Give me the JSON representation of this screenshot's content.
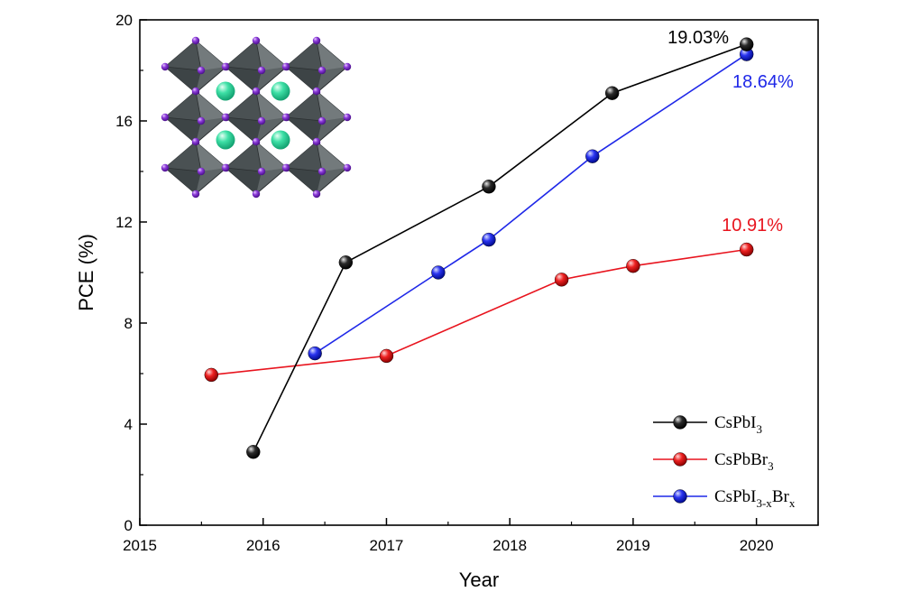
{
  "chart_data": {
    "type": "line",
    "title": "",
    "xlabel": "Year",
    "ylabel": "PCE (%)",
    "xlim": [
      2015,
      2020.5
    ],
    "ylim": [
      0,
      20
    ],
    "xticks": [
      "2015",
      "2016",
      "2017",
      "2018",
      "2019",
      "2020"
    ],
    "yticks": [
      "0",
      "4",
      "8",
      "12",
      "16",
      "20"
    ],
    "grid": false,
    "legend_position": "bottom-right",
    "series": [
      {
        "key": "CsPbI3",
        "name": "CsPbI3",
        "legend_base": "CsPbI",
        "legend_sub": "3",
        "color": "#000000",
        "x": [
          2015.92,
          2016.67,
          2017.83,
          2018.83,
          2019.92
        ],
        "y": [
          2.9,
          10.4,
          13.4,
          17.1,
          19.03
        ]
      },
      {
        "key": "CsPbBr3",
        "name": "CsPbBr3",
        "legend_base": "CsPbBr",
        "legend_sub": "3",
        "color": "#e8141e",
        "x": [
          2015.58,
          2017.0,
          2018.42,
          2019.0,
          2019.92
        ],
        "y": [
          5.95,
          6.7,
          9.72,
          10.26,
          10.91
        ]
      },
      {
        "key": "CsPbI3-xBrx",
        "name": "CsPbI3-xBrx",
        "legend_base": "CsPbI",
        "legend_sub": "3-x",
        "legend_mid": "Br",
        "legend_sub2": "x",
        "color": "#1f28e8",
        "x": [
          2016.42,
          2017.42,
          2017.83,
          2018.67,
          2019.92
        ],
        "y": [
          6.8,
          10.0,
          11.3,
          14.6,
          18.64
        ]
      }
    ],
    "annotations": [
      {
        "text": "19.03%",
        "color": "#000000",
        "series": "CsPbI3"
      },
      {
        "text": "18.64%",
        "color": "#1f28e8",
        "series": "CsPbI3-xBrx"
      },
      {
        "text": "10.91%",
        "color": "#e8141e",
        "series": "CsPbBr3"
      }
    ],
    "inset": "perovskite crystal structure"
  }
}
